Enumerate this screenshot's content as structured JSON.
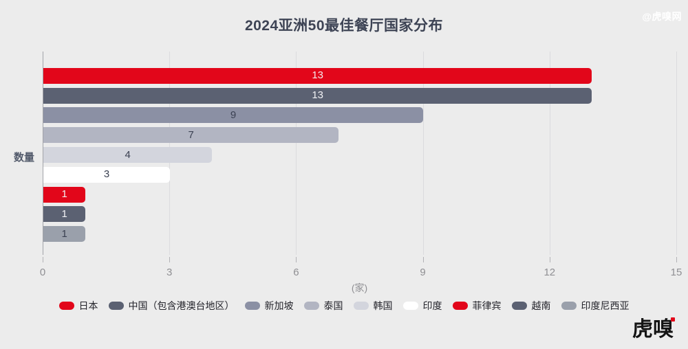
{
  "header": {
    "title": "2024亚洲50最佳餐厅国家分布",
    "watermark": "@虎嗅网"
  },
  "footer": {
    "logo_text": "虎嗅"
  },
  "chart_data": {
    "type": "bar",
    "orientation": "horizontal",
    "title": "2024亚洲50最佳餐厅国家分布",
    "ylabel": "数量",
    "x_unit_label": "(家)",
    "xlim": [
      0,
      15
    ],
    "xticks": [
      0,
      3,
      6,
      9,
      12,
      15
    ],
    "grid": true,
    "legend_position": "bottom",
    "categories": [
      "日本",
      "中国（包含港澳台地区）",
      "新加坡",
      "泰国",
      "韩国",
      "印度",
      "菲律宾",
      "越南",
      "印度尼西亚"
    ],
    "values": [
      13,
      13,
      9,
      7,
      4,
      3,
      1,
      1,
      1
    ],
    "bar_colors": [
      "#e2061a",
      "#5b6172",
      "#8b90a4",
      "#b2b5c2",
      "#d3d5dd",
      "#ffffff",
      "#e2061a",
      "#5b6172",
      "#9aa0ab"
    ],
    "value_label_colors": [
      "#f4eced",
      "#f2f2f5",
      "#3a4051",
      "#3a4051",
      "#3a4051",
      "#3a4051",
      "#f4eced",
      "#f2f2f5",
      "#3a4051"
    ]
  }
}
